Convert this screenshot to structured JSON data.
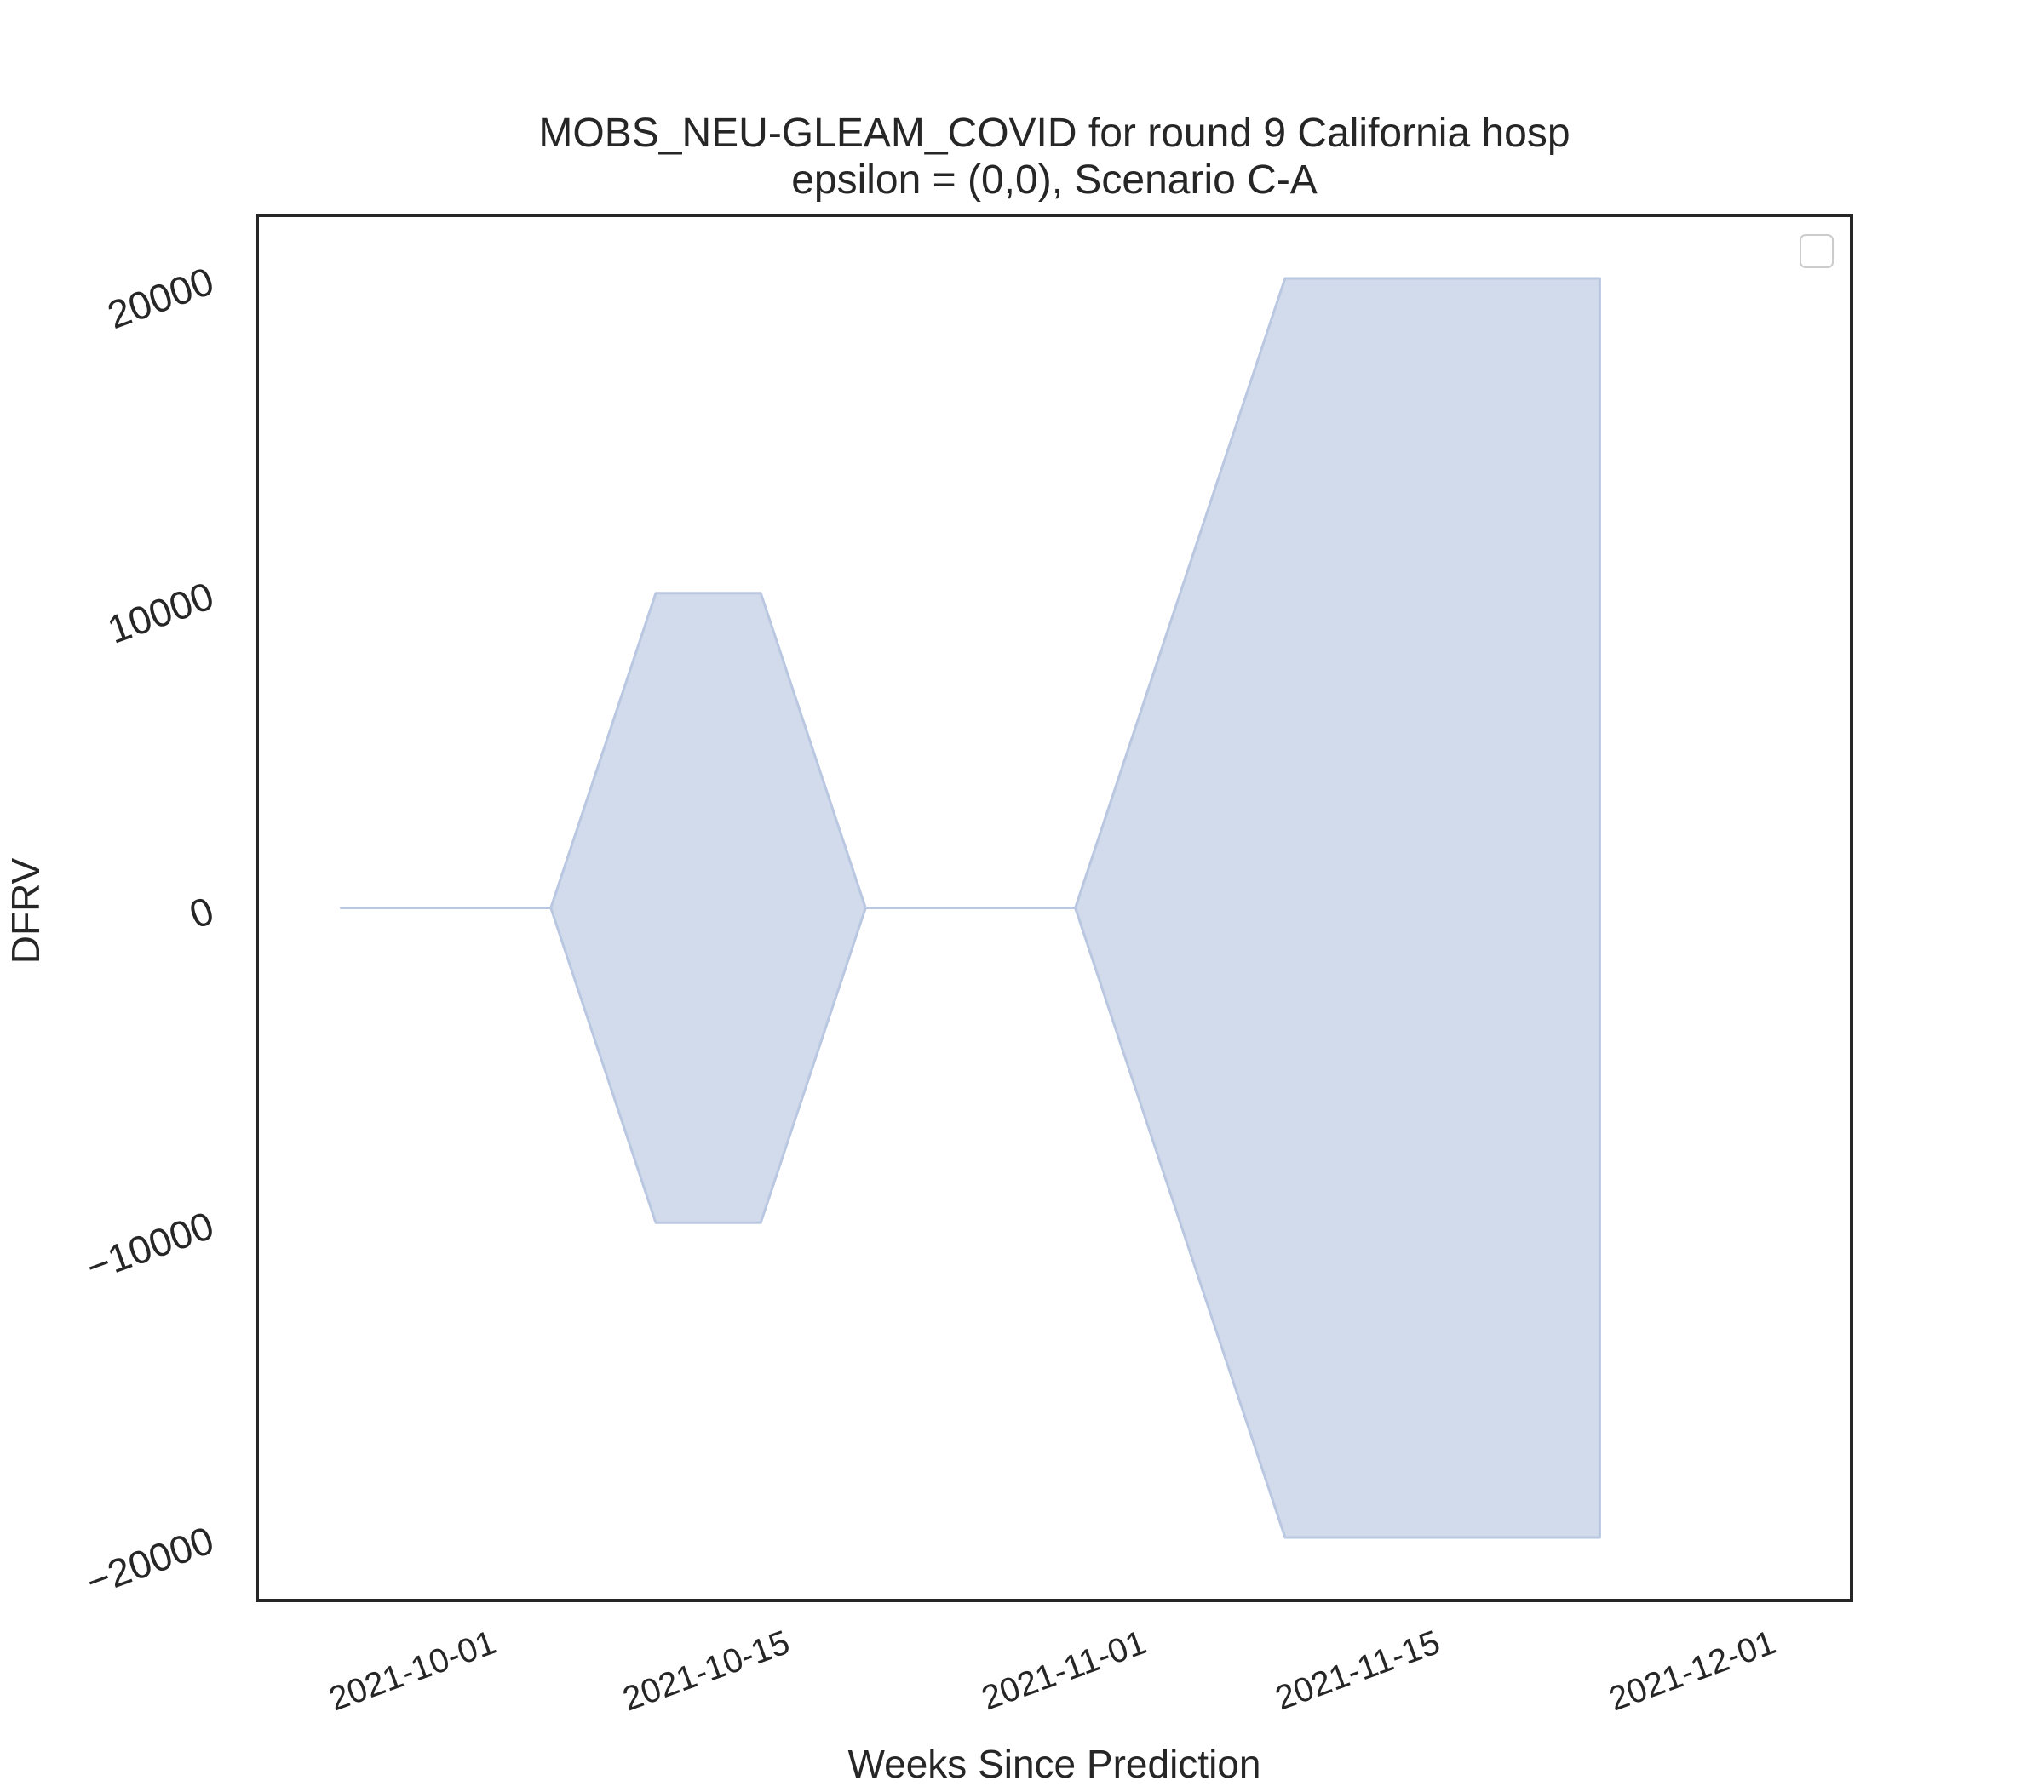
{
  "chart_data": {
    "type": "area",
    "title": "MOBS_NEU-GLEAM_COVID for round 9 California hosp",
    "subtitle": "epsilon = (0,0), Scenario C-A",
    "xlabel": "Weeks Since Prediction",
    "ylabel": "DFRV",
    "x_tick_labels": [
      "2021-10-01",
      "2021-10-15",
      "2021-11-01",
      "2021-11-15",
      "2021-12-01"
    ],
    "y_tick_labels": [
      "−20000",
      "−10000",
      "0",
      "10000",
      "20000"
    ],
    "y_ticks": [
      -20000,
      -10000,
      0,
      10000,
      20000
    ],
    "x_range": [
      "2021-09-20",
      "2021-12-05"
    ],
    "ylim": [
      -22000,
      22000
    ],
    "grid": false,
    "legend": "top-right (empty)",
    "series": [
      {
        "x": [
          "2021-09-24",
          "2021-10-04",
          "2021-10-09",
          "2021-10-14",
          "2021-10-19",
          "2021-10-24",
          "2021-10-29",
          "2021-11-08",
          "2021-11-23"
        ],
        "upper": [
          0,
          0,
          10000,
          10000,
          0,
          0,
          0,
          20000,
          20000
        ],
        "lower": [
          0,
          0,
          -10000,
          -10000,
          0,
          0,
          0,
          -20000,
          -20000
        ]
      }
    ],
    "fill_color": "#d2dbeb",
    "edge_color": "#b9c7e1",
    "axis_color": "#262626"
  }
}
